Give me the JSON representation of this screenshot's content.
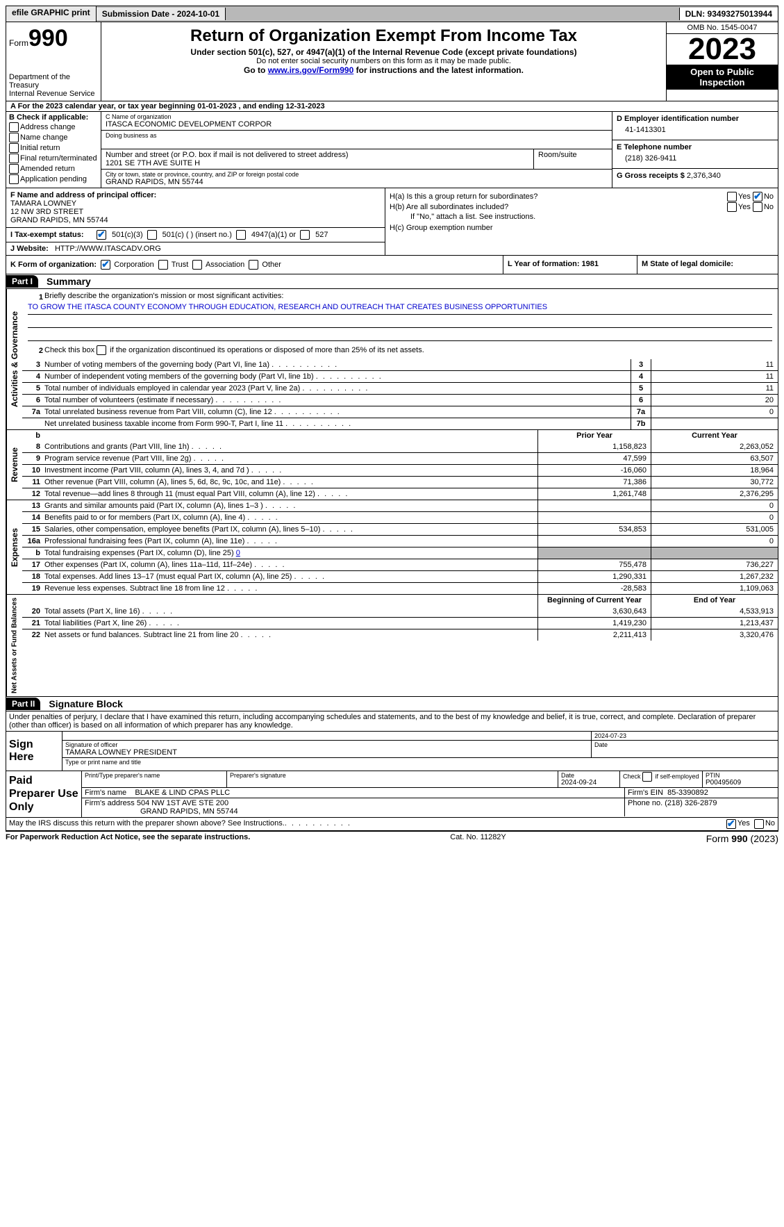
{
  "topbar": {
    "btn1": "efile GRAPHIC print",
    "btn2": "Submission Date - 2024-10-01",
    "dln": "DLN: 93493275013944"
  },
  "header": {
    "form_prefix": "Form",
    "form_num": "990",
    "dept": "Department of the Treasury\nInternal Revenue Service",
    "title": "Return of Organization Exempt From Income Tax",
    "sub1": "Under section 501(c), 527, or 4947(a)(1) of the Internal Revenue Code (except private foundations)",
    "sub2": "Do not enter social security numbers on this form as it may be made public.",
    "sub3_pre": "Go to ",
    "sub3_link": "www.irs.gov/Form990",
    "sub3_post": " for instructions and the latest information.",
    "omb": "OMB No. 1545-0047",
    "year": "2023",
    "open": "Open to Public Inspection"
  },
  "rowA": "A For the 2023 calendar year, or tax year beginning 01-01-2023   , and ending 12-31-2023",
  "B": {
    "header": "B Check if applicable:",
    "opts": [
      "Address change",
      "Name change",
      "Initial return",
      "Final return/terminated",
      "Amended return",
      "Application pending"
    ]
  },
  "C": {
    "name_lbl": "C Name of organization",
    "name": "ITASCA ECONOMIC DEVELOPMENT CORPOR",
    "dba_lbl": "Doing business as",
    "addr_lbl": "Number and street (or P.O. box if mail is not delivered to street address)",
    "addr": "1201 SE 7TH AVE SUITE H",
    "room_lbl": "Room/suite",
    "city_lbl": "City or town, state or province, country, and ZIP or foreign postal code",
    "city": "GRAND RAPIDS, MN  55744"
  },
  "D": {
    "lbl": "D Employer identification number",
    "val": "41-1413301"
  },
  "E": {
    "lbl": "E Telephone number",
    "val": "(218) 326-9411"
  },
  "G": {
    "lbl": "G Gross receipts $",
    "val": "2,376,340"
  },
  "F": {
    "lbl": "F  Name and address of principal officer:",
    "name": "TAMARA LOWNEY",
    "street": "12 NW 3RD STREET",
    "city": "GRAND RAPIDS, MN  55744"
  },
  "I": {
    "lbl": "I   Tax-exempt status:",
    "o1": "501(c)(3)",
    "o2": "501(c) (  ) (insert no.)",
    "o3": "4947(a)(1) or",
    "o4": "527"
  },
  "J": {
    "lbl": "J   Website:",
    "val": "HTTP://WWW.ITASCADV.ORG"
  },
  "H": {
    "a": "H(a)  Is this a group return for subordinates?",
    "b": "H(b)  Are all subordinates included?",
    "note": "If \"No,\" attach a list. See instructions.",
    "c": "H(c)  Group exemption number",
    "yes": "Yes",
    "no": "No"
  },
  "K": {
    "lbl": "K Form of organization:",
    "o1": "Corporation",
    "o2": "Trust",
    "o3": "Association",
    "o4": "Other"
  },
  "L": "L Year of formation: 1981",
  "M": "M State of legal domicile:",
  "part1": {
    "num": "Part I",
    "title": "Summary"
  },
  "mission": {
    "lbl": "Briefly describe the organization's mission or most significant activities:",
    "text": "TO GROW THE ITASCA COUNTY ECONOMY THROUGH EDUCATION, RESEARCH AND OUTREACH THAT CREATES BUSINESS OPPORTUNITIES"
  },
  "line2": "Check this box       if the organization discontinued its operations or disposed of more than 25% of its net assets.",
  "gov_lines": [
    {
      "n": "3",
      "lbl": "Number of voting members of the governing body (Part VI, line 1a)",
      "box": "3",
      "val": "11"
    },
    {
      "n": "4",
      "lbl": "Number of independent voting members of the governing body (Part VI, line 1b)",
      "box": "4",
      "val": "11"
    },
    {
      "n": "5",
      "lbl": "Total number of individuals employed in calendar year 2023 (Part V, line 2a)",
      "box": "5",
      "val": "11"
    },
    {
      "n": "6",
      "lbl": "Total number of volunteers (estimate if necessary)",
      "box": "6",
      "val": "20"
    },
    {
      "n": "7a",
      "lbl": "Total unrelated business revenue from Part VIII, column (C), line 12",
      "box": "7a",
      "val": "0"
    },
    {
      "n": "",
      "lbl": "Net unrelated business taxable income from Form 990-T, Part I, line 11",
      "box": "7b",
      "val": ""
    }
  ],
  "py_header": "Prior Year",
  "cy_header": "Current Year",
  "rev_lines": [
    {
      "n": "8",
      "lbl": "Contributions and grants (Part VIII, line 1h)",
      "py": "1,158,823",
      "cy": "2,263,052"
    },
    {
      "n": "9",
      "lbl": "Program service revenue (Part VIII, line 2g)",
      "py": "47,599",
      "cy": "63,507"
    },
    {
      "n": "10",
      "lbl": "Investment income (Part VIII, column (A), lines 3, 4, and 7d )",
      "py": "-16,060",
      "cy": "18,964"
    },
    {
      "n": "11",
      "lbl": "Other revenue (Part VIII, column (A), lines 5, 6d, 8c, 9c, 10c, and 11e)",
      "py": "71,386",
      "cy": "30,772"
    },
    {
      "n": "12",
      "lbl": "Total revenue—add lines 8 through 11 (must equal Part VIII, column (A), line 12)",
      "py": "1,261,748",
      "cy": "2,376,295"
    }
  ],
  "exp_lines": [
    {
      "n": "13",
      "lbl": "Grants and similar amounts paid (Part IX, column (A), lines 1–3 )",
      "py": "",
      "cy": "0"
    },
    {
      "n": "14",
      "lbl": "Benefits paid to or for members (Part IX, column (A), line 4)",
      "py": "",
      "cy": "0"
    },
    {
      "n": "15",
      "lbl": "Salaries, other compensation, employee benefits (Part IX, column (A), lines 5–10)",
      "py": "534,853",
      "cy": "531,005"
    },
    {
      "n": "16a",
      "lbl": "Professional fundraising fees (Part IX, column (A), line 11e)",
      "py": "",
      "cy": "0"
    },
    {
      "n": "b",
      "lbl": "Total fundraising expenses (Part IX, column (D), line 25) ",
      "link": "0",
      "py": "GRAY",
      "cy": "GRAY"
    },
    {
      "n": "17",
      "lbl": "Other expenses (Part IX, column (A), lines 11a–11d, 11f–24e)",
      "py": "755,478",
      "cy": "736,227"
    },
    {
      "n": "18",
      "lbl": "Total expenses. Add lines 13–17 (must equal Part IX, column (A), line 25)",
      "py": "1,290,331",
      "cy": "1,267,232"
    },
    {
      "n": "19",
      "lbl": "Revenue less expenses. Subtract line 18 from line 12",
      "py": "-28,583",
      "cy": "1,109,063"
    }
  ],
  "bcy_header": "Beginning of Current Year",
  "eoy_header": "End of Year",
  "na_lines": [
    {
      "n": "20",
      "lbl": "Total assets (Part X, line 16)",
      "py": "3,630,643",
      "cy": "4,533,913"
    },
    {
      "n": "21",
      "lbl": "Total liabilities (Part X, line 26)",
      "py": "1,419,230",
      "cy": "1,213,437"
    },
    {
      "n": "22",
      "lbl": "Net assets or fund balances. Subtract line 21 from line 20",
      "py": "2,211,413",
      "cy": "3,320,476"
    }
  ],
  "part2": {
    "num": "Part II",
    "title": "Signature Block"
  },
  "penalties": "Under penalties of perjury, I declare that I have examined this return, including accompanying schedules and statements, and to the best of my knowledge and belief, it is true, correct, and complete. Declaration of preparer (other than officer) is based on all information of which preparer has any knowledge.",
  "sign": {
    "here": "Sign Here",
    "sig_lbl": "Signature of officer",
    "officer": "TAMARA LOWNEY  PRESIDENT",
    "type_lbl": "Type or print name and title",
    "date_lbl": "Date",
    "date": "2024-07-23"
  },
  "paid": {
    "lbl": "Paid Preparer Use Only",
    "h1": "Print/Type preparer's name",
    "h2": "Preparer's signature",
    "h3": "Date",
    "date": "2024-09-24",
    "h4": "Check       if self-employed",
    "h5": "PTIN",
    "ptin": "P00495609",
    "firm_name_lbl": "Firm's name",
    "firm_name": "BLAKE & LIND CPAS PLLC",
    "firm_ein_lbl": "Firm's EIN",
    "firm_ein": "85-3390892",
    "firm_addr_lbl": "Firm's address",
    "firm_addr1": "504 NW 1ST AVE STE 200",
    "firm_addr2": "GRAND RAPIDS, MN  55744",
    "phone_lbl": "Phone no.",
    "phone": "(218) 326-2879"
  },
  "discuss": "May the IRS discuss this return with the preparer shown above? See Instructions.",
  "footer": {
    "left": "For Paperwork Reduction Act Notice, see the separate instructions.",
    "mid": "Cat. No. 11282Y",
    "right_pre": "Form ",
    "right_b": "990",
    "right_post": " (2023)"
  },
  "side": {
    "ag": "Activities & Governance",
    "rev": "Revenue",
    "exp": "Expenses",
    "na": "Net Assets or Fund Balances"
  }
}
